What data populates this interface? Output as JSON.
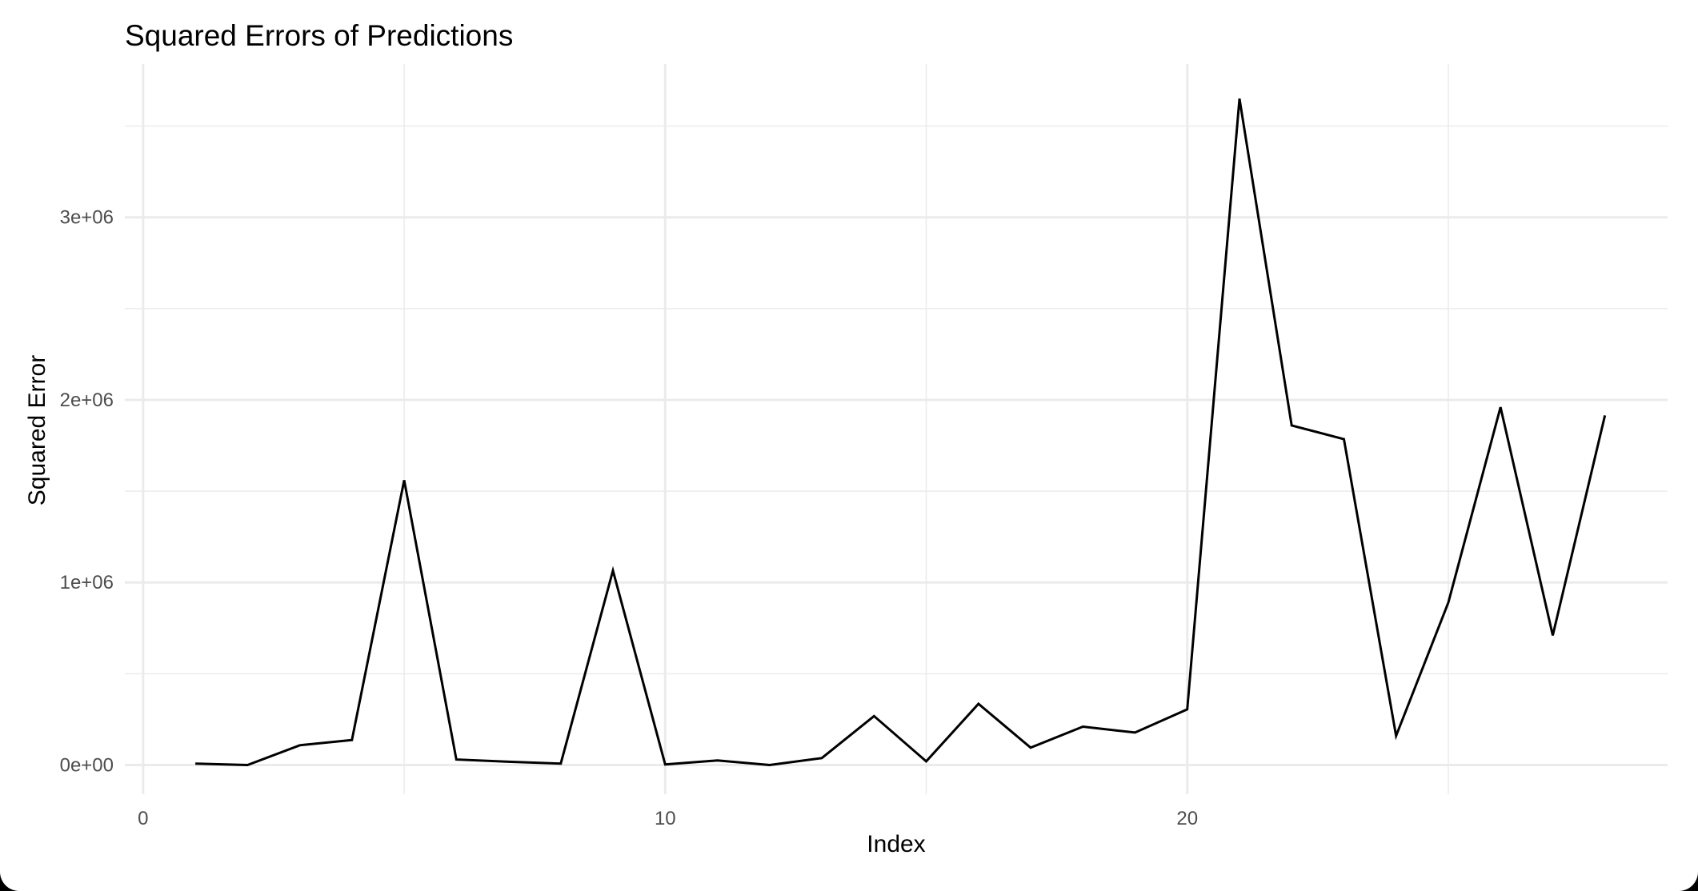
{
  "chart_data": {
    "type": "line",
    "title": "Squared Errors of Predictions",
    "xlabel": "Index",
    "ylabel": "Squared Error",
    "xlim": [
      -0.35,
      29.2
    ],
    "ylim": [
      -160000,
      3840000
    ],
    "x_ticks": [
      {
        "value": 0,
        "label": "0"
      },
      {
        "value": 10,
        "label": "10"
      },
      {
        "value": 20,
        "label": "20"
      }
    ],
    "x_minor_gridlines": [
      5,
      15,
      25
    ],
    "y_ticks": [
      {
        "value": 0,
        "label": "0e+00"
      },
      {
        "value": 1000000,
        "label": "1e+06"
      },
      {
        "value": 2000000,
        "label": "2e+06"
      },
      {
        "value": 3000000,
        "label": "3e+06"
      }
    ],
    "y_minor_gridlines": [
      500000,
      1500000,
      2500000,
      3500000
    ],
    "grid": true,
    "legend": "none",
    "colors": {
      "line": "#000000",
      "grid": "#ebebeb",
      "background": "#ffffff"
    },
    "series": [
      {
        "x": [
          1,
          2,
          3,
          4,
          5,
          6,
          7,
          8,
          9,
          10,
          11,
          12,
          13,
          14,
          15,
          16,
          17,
          18,
          19,
          20,
          21,
          22,
          23,
          24,
          25,
          26,
          27,
          28
        ],
        "values": [
          8000,
          0,
          108000,
          137000,
          1560000,
          30000,
          18000,
          8000,
          1065000,
          3000,
          25000,
          0,
          38000,
          268000,
          20000,
          335000,
          95000,
          210000,
          178000,
          305000,
          3650000,
          1860000,
          1785000,
          160000,
          890000,
          1960000,
          710000,
          1915000
        ]
      }
    ]
  }
}
